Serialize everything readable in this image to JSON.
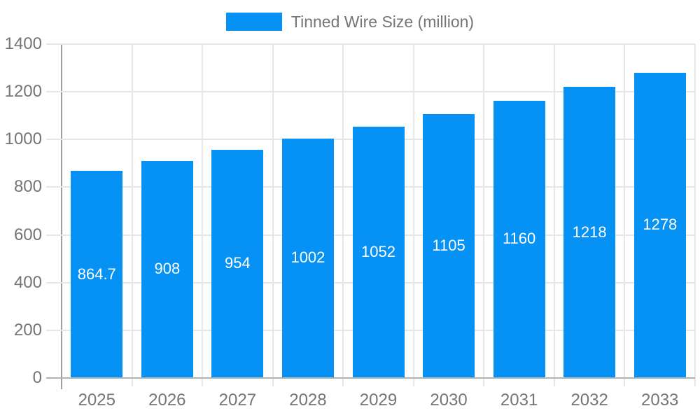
{
  "legend": {
    "label": "Tinned Wire Size (million)",
    "swatch_color": "#0691f5"
  },
  "chart_data": {
    "type": "bar",
    "title": "",
    "xlabel": "",
    "ylabel": "",
    "categories": [
      "2025",
      "2026",
      "2027",
      "2028",
      "2029",
      "2030",
      "2031",
      "2032",
      "2033"
    ],
    "series": [
      {
        "name": "Tinned Wire Size (million)",
        "values": [
          864.7,
          908,
          954,
          1002,
          1052,
          1105,
          1160,
          1218,
          1278
        ]
      }
    ],
    "value_labels": [
      "864.7",
      "908",
      "954",
      "1002",
      "1052",
      "1105",
      "1160",
      "1218",
      "1278"
    ],
    "ylim": [
      0,
      1400
    ],
    "yticks": [
      0,
      200,
      400,
      600,
      800,
      1000,
      1200,
      1400
    ],
    "grid": true,
    "legend_position": "top-center",
    "colors": {
      "bar": "#0691f5",
      "axis_text": "#757575",
      "gridline": "#e6e6e6",
      "x_axis_line": "#b3b3b3",
      "y_axis_line": "#9e9e9e",
      "value_label": "#ffffff"
    }
  }
}
